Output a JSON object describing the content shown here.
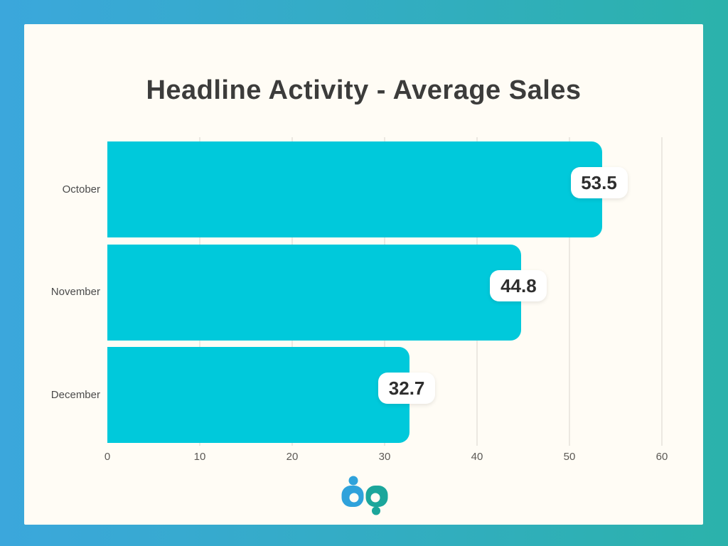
{
  "page": {
    "background_gradient": [
      "#3BA7DC",
      "#2BB2AB"
    ],
    "card_background": "#FFFCF5"
  },
  "chart_data": {
    "type": "bar",
    "orientation": "horizontal",
    "title": "Headline Activity - Average Sales",
    "categories": [
      "October",
      "November",
      "December"
    ],
    "values": [
      53.5,
      44.8,
      32.7
    ],
    "value_labels": [
      "53.5",
      "44.8",
      "32.7"
    ],
    "xlabel": "",
    "ylabel": "",
    "xlim": [
      0,
      60
    ],
    "x_ticks": [
      0,
      10,
      20,
      30,
      40,
      50,
      60
    ],
    "grid": "vertical",
    "legend": "none",
    "bar_color": "#00C9DB",
    "gridline_color": "#ECE8E1",
    "title_color": "#3C3C3B",
    "category_label_color": "#4B4B4B",
    "tick_label_color": "#5C5955",
    "value_badge_background": "#FFFFFF",
    "value_text_color": "#2E2E2E"
  },
  "logo": {
    "name": "bp",
    "blue": "#2FA2DB",
    "teal": "#1BA69B"
  }
}
